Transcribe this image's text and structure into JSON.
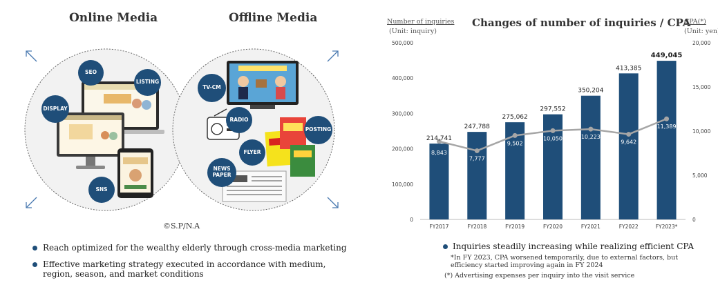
{
  "media": {
    "online_title": "Online Media",
    "offline_title": "Offline Media",
    "online_items": [
      "SEO",
      "LISTING",
      "DISPLAY",
      "SNS"
    ],
    "offline_items": [
      "TV-CM",
      "RADIO",
      "POSTING",
      "FLYER",
      "NEWS PAPER"
    ],
    "copyright": "©S.P/N.A",
    "bullets": [
      "Reach optimized for the wealthy elderly through cross-media marketing",
      "Effective marketing strategy executed in accordance with medium, region, season, and market conditions"
    ]
  },
  "chart_notes": {
    "bullet": "Inquiries steadily increasing while realizing efficient CPA",
    "note1": "*In FY 2023, CPA worsened temporarily, due to external factors, but efficiency started improving again in FY 2024",
    "note2": "(*) Advertising expenses per inquiry into the visit service"
  },
  "colors": {
    "bar": "#1f4e79",
    "line": "#a6a6a6",
    "accent": "#1f4e79"
  },
  "chart_data": {
    "type": "bar",
    "title": "Changes of number of inquiries / CPA",
    "left_axis_label": "Number of inquiries",
    "left_axis_unit": "(Unit: inquiry)",
    "right_axis_label": "CPA(*)",
    "right_axis_unit": "(Unit: yen)",
    "categories": [
      "FY2017",
      "FY2018",
      "FY2019",
      "FY2020",
      "FY2021",
      "FY2022",
      "FY2023*"
    ],
    "series": [
      {
        "type": "bar",
        "axis": "left",
        "values": [
          214741,
          247788,
          275062,
          297552,
          350204,
          413385,
          449045
        ],
        "labels": [
          "214,741",
          "247,788",
          "275,062",
          "297,552",
          "350,204",
          "413,385",
          "449,045"
        ]
      },
      {
        "type": "line",
        "axis": "right",
        "values": [
          8843,
          7777,
          9502,
          10050,
          10223,
          9642,
          11389
        ],
        "labels": [
          "8,843",
          "7,777",
          "9,502",
          "10,050",
          "10,223",
          "9,642",
          "11,389"
        ]
      }
    ],
    "ylim": [
      0,
      500000
    ],
    "y_ticks": [
      "0",
      "100,000",
      "200,000",
      "300,000",
      "400,000",
      "500,000"
    ],
    "y2lim": [
      0,
      20000
    ],
    "y2_ticks": [
      "0",
      "5,000",
      "10,000",
      "15,000",
      "20,000"
    ],
    "grid": false,
    "legend": "none"
  }
}
